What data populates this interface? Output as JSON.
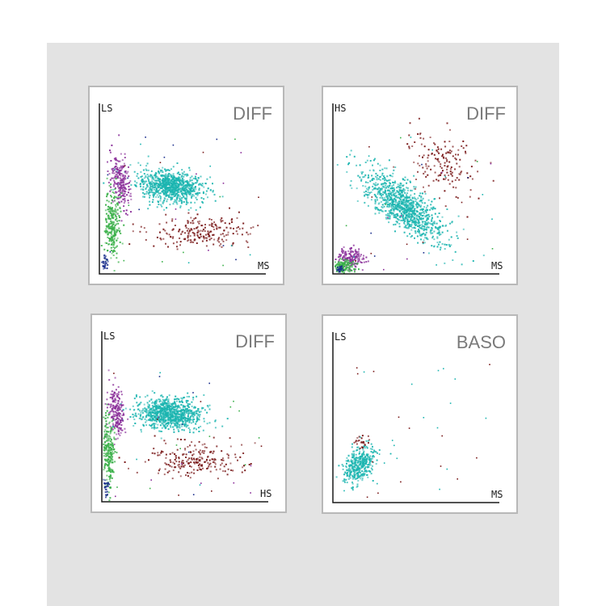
{
  "colors": {
    "background": "#e3e3e3",
    "panel_border": "#b8b8b8",
    "lymphocytes": "#3bb04a",
    "monocytes": "#18a8a8",
    "neutrophils": "#1cb5b0",
    "eosinophils": "#7a1a1a",
    "basophils_cluster": "#8a2e99",
    "debris": "#1a2e8c"
  },
  "chart_data": [
    {
      "type": "scatter",
      "title": "DIFF",
      "xlabel": "MS",
      "ylabel": "LS",
      "grid": false,
      "xlim": [
        0,
        100
      ],
      "ylim": [
        0,
        100
      ],
      "series": [
        {
          "color": "#1cb5b0",
          "clusters": [
            {
              "cx": 42,
              "cy": 52,
              "sx": 10,
              "sy": 4.5,
              "rot": -8,
              "n": 900
            }
          ]
        },
        {
          "color": "#8a2e99",
          "clusters": [
            {
              "cx": 12,
              "cy": 55,
              "sx": 2.8,
              "sy": 8,
              "rot": 10,
              "n": 220
            }
          ]
        },
        {
          "color": "#3bb04a",
          "clusters": [
            {
              "cx": 7,
              "cy": 28,
              "sx": 2.2,
              "sy": 10,
              "rot": 0,
              "n": 260
            }
          ]
        },
        {
          "color": "#7a1a1a",
          "clusters": [
            {
              "cx": 62,
              "cy": 24,
              "sx": 16,
              "sy": 5,
              "rot": 0,
              "n": 220
            }
          ]
        },
        {
          "color": "#1a2e8c",
          "clusters": [
            {
              "cx": 2.5,
              "cy": 7,
              "sx": 1.2,
              "sy": 3,
              "rot": 0,
              "n": 30
            }
          ]
        }
      ]
    },
    {
      "type": "scatter",
      "title": "DIFF",
      "xlabel": "MS",
      "ylabel": "HS",
      "grid": false,
      "xlim": [
        0,
        100
      ],
      "ylim": [
        0,
        100
      ],
      "series": [
        {
          "color": "#1cb5b0",
          "clusters": [
            {
              "cx": 42,
              "cy": 40,
              "sx": 15,
              "sy": 5.5,
              "rot": -38,
              "n": 1000
            }
          ]
        },
        {
          "color": "#7a1a1a",
          "clusters": [
            {
              "cx": 65,
              "cy": 66,
              "sx": 12,
              "sy": 8,
              "rot": -40,
              "n": 160
            }
          ]
        },
        {
          "color": "#8a2e99",
          "clusters": [
            {
              "cx": 10,
              "cy": 9,
              "sx": 4,
              "sy": 3,
              "rot": -20,
              "n": 160
            }
          ]
        },
        {
          "color": "#3bb04a",
          "clusters": [
            {
              "cx": 6,
              "cy": 4,
              "sx": 3,
              "sy": 2,
              "rot": 0,
              "n": 140
            }
          ]
        },
        {
          "color": "#1a2e8c",
          "clusters": [
            {
              "cx": 3,
              "cy": 2,
              "sx": 1.2,
              "sy": 1,
              "rot": 0,
              "n": 20
            }
          ]
        }
      ]
    },
    {
      "type": "scatter",
      "title": "DIFF",
      "xlabel": "HS",
      "ylabel": "LS",
      "grid": false,
      "xlim": [
        0,
        100
      ],
      "ylim": [
        0,
        100
      ],
      "series": [
        {
          "color": "#1cb5b0",
          "clusters": [
            {
              "cx": 40,
              "cy": 52,
              "sx": 10,
              "sy": 4.5,
              "rot": -5,
              "n": 900
            }
          ]
        },
        {
          "color": "#8a2e99",
          "clusters": [
            {
              "cx": 8,
              "cy": 53,
              "sx": 2.5,
              "sy": 8,
              "rot": 5,
              "n": 200
            }
          ]
        },
        {
          "color": "#3bb04a",
          "clusters": [
            {
              "cx": 3.5,
              "cy": 29,
              "sx": 1.8,
              "sy": 10,
              "rot": 0,
              "n": 240
            }
          ]
        },
        {
          "color": "#7a1a1a",
          "clusters": [
            {
              "cx": 55,
              "cy": 24,
              "sx": 15,
              "sy": 5,
              "rot": 0,
              "n": 220
            }
          ]
        },
        {
          "color": "#1a2e8c",
          "clusters": [
            {
              "cx": 1.5,
              "cy": 7,
              "sx": 0.8,
              "sy": 3,
              "rot": 0,
              "n": 25
            }
          ]
        }
      ]
    },
    {
      "type": "scatter",
      "title": "BASO",
      "xlabel": "MS",
      "ylabel": "LS",
      "grid": false,
      "xlim": [
        0,
        100
      ],
      "ylim": [
        0,
        100
      ],
      "series": [
        {
          "color": "#1cb5b0",
          "clusters": [
            {
              "cx": 15,
              "cy": 22,
              "sx": 4,
              "sy": 6,
              "rot": -25,
              "n": 380
            }
          ]
        },
        {
          "color": "#7a1a1a",
          "clusters": [
            {
              "cx": 17,
              "cy": 35,
              "sx": 2.5,
              "sy": 2.5,
              "rot": 0,
              "n": 25
            }
          ]
        }
      ]
    }
  ]
}
